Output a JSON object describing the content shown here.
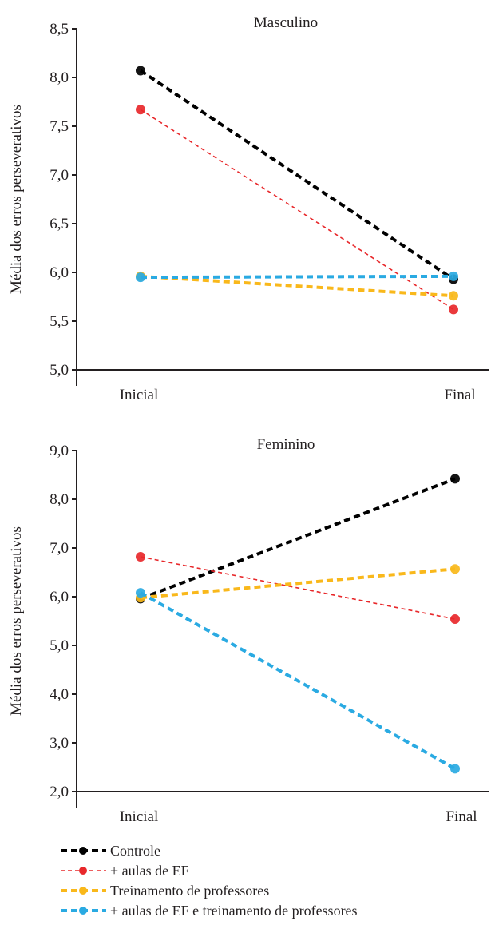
{
  "chart_data": [
    {
      "type": "line",
      "title": "Masculino",
      "xlabel": "",
      "ylabel": "Média dos erros perseverativos",
      "categories": [
        "Inicial",
        "Final"
      ],
      "yticks": [
        "5,0",
        "5,5",
        "6,0",
        "6,5",
        "7,0",
        "7,5",
        "8,0",
        "8,5"
      ],
      "ylim": [
        5.0,
        8.5
      ],
      "series": [
        {
          "name": "Controle",
          "values": [
            8.07,
            5.93
          ]
        },
        {
          "name": "+ aulas de EF",
          "values": [
            7.67,
            5.62
          ]
        },
        {
          "name": "Treinamento de professores",
          "values": [
            5.96,
            5.76
          ]
        },
        {
          "name": "+ aulas de EF e treinamento de professores",
          "values": [
            5.95,
            5.96
          ]
        }
      ]
    },
    {
      "type": "line",
      "title": "Feminino",
      "xlabel": "",
      "ylabel": "Média dos erros perseverativos",
      "categories": [
        "Inicial",
        "Final"
      ],
      "yticks": [
        "2,0",
        "3,0",
        "4,0",
        "5,0",
        "6,0",
        "7,0",
        "8,0",
        "9,0"
      ],
      "ylim": [
        2.0,
        9.0
      ],
      "series": [
        {
          "name": "Controle",
          "values": [
            5.96,
            8.42
          ]
        },
        {
          "name": "+ aulas de EF",
          "values": [
            6.82,
            5.54
          ]
        },
        {
          "name": "Treinamento de professores",
          "values": [
            5.98,
            6.57
          ]
        },
        {
          "name": "+ aulas de EF e treinamento de professores",
          "values": [
            6.08,
            2.47
          ]
        }
      ]
    }
  ],
  "legend": {
    "position": "bottom-left",
    "items": [
      {
        "label": "Controle",
        "color": "#000000"
      },
      {
        "label": "+ aulas de EF",
        "color": "#e8282b"
      },
      {
        "label": "Treinamento de professores",
        "color": "#f9b81b"
      },
      {
        "label": "+ aulas de EF e treinamento de professores",
        "color": "#2aaae2"
      }
    ]
  },
  "colors": [
    "#000000",
    "#e8282b",
    "#f9b81b",
    "#2aaae2"
  ]
}
